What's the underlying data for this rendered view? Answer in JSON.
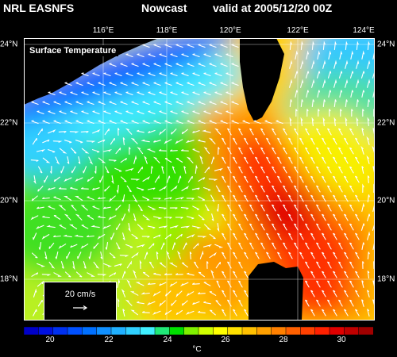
{
  "header": {
    "model": "NRL EASNFS",
    "product": "Nowcast",
    "valid": "valid at 2005/12/20 00Z"
  },
  "map": {
    "title": "Surface Temperature",
    "lon_range": [
      114,
      124
    ],
    "lat_range": [
      17,
      24
    ],
    "lon_labels": [
      "116°E",
      "118°E",
      "120°E",
      "122°E",
      "124°E"
    ],
    "lat_labels_left": [
      "24°N",
      "22°N",
      "20°N",
      "18°N"
    ],
    "lat_labels_right": [
      "24°N",
      "22°N",
      "20°N",
      "18°N"
    ],
    "land_color": "#000000",
    "grid_color": "#ffffff",
    "vector_color": "#ffffff"
  },
  "legend": {
    "vector_label": "20 cm/s",
    "vector_speed_cm_s": 20
  },
  "colorbar": {
    "labels": [
      "20",
      "22",
      "24",
      "26",
      "28",
      "30"
    ],
    "unit": "°C",
    "range": [
      19,
      31
    ],
    "colors": [
      "#0000c8",
      "#0010e0",
      "#0030f0",
      "#0050ff",
      "#0070ff",
      "#1090ff",
      "#20b0ff",
      "#30d0ff",
      "#40f0ff",
      "#20e878",
      "#00e000",
      "#80f000",
      "#d0ff00",
      "#ffff00",
      "#ffe000",
      "#ffc000",
      "#ffa000",
      "#ff8000",
      "#ff6000",
      "#ff4000",
      "#ff2000",
      "#e00000",
      "#c00000",
      "#a00000"
    ]
  }
}
